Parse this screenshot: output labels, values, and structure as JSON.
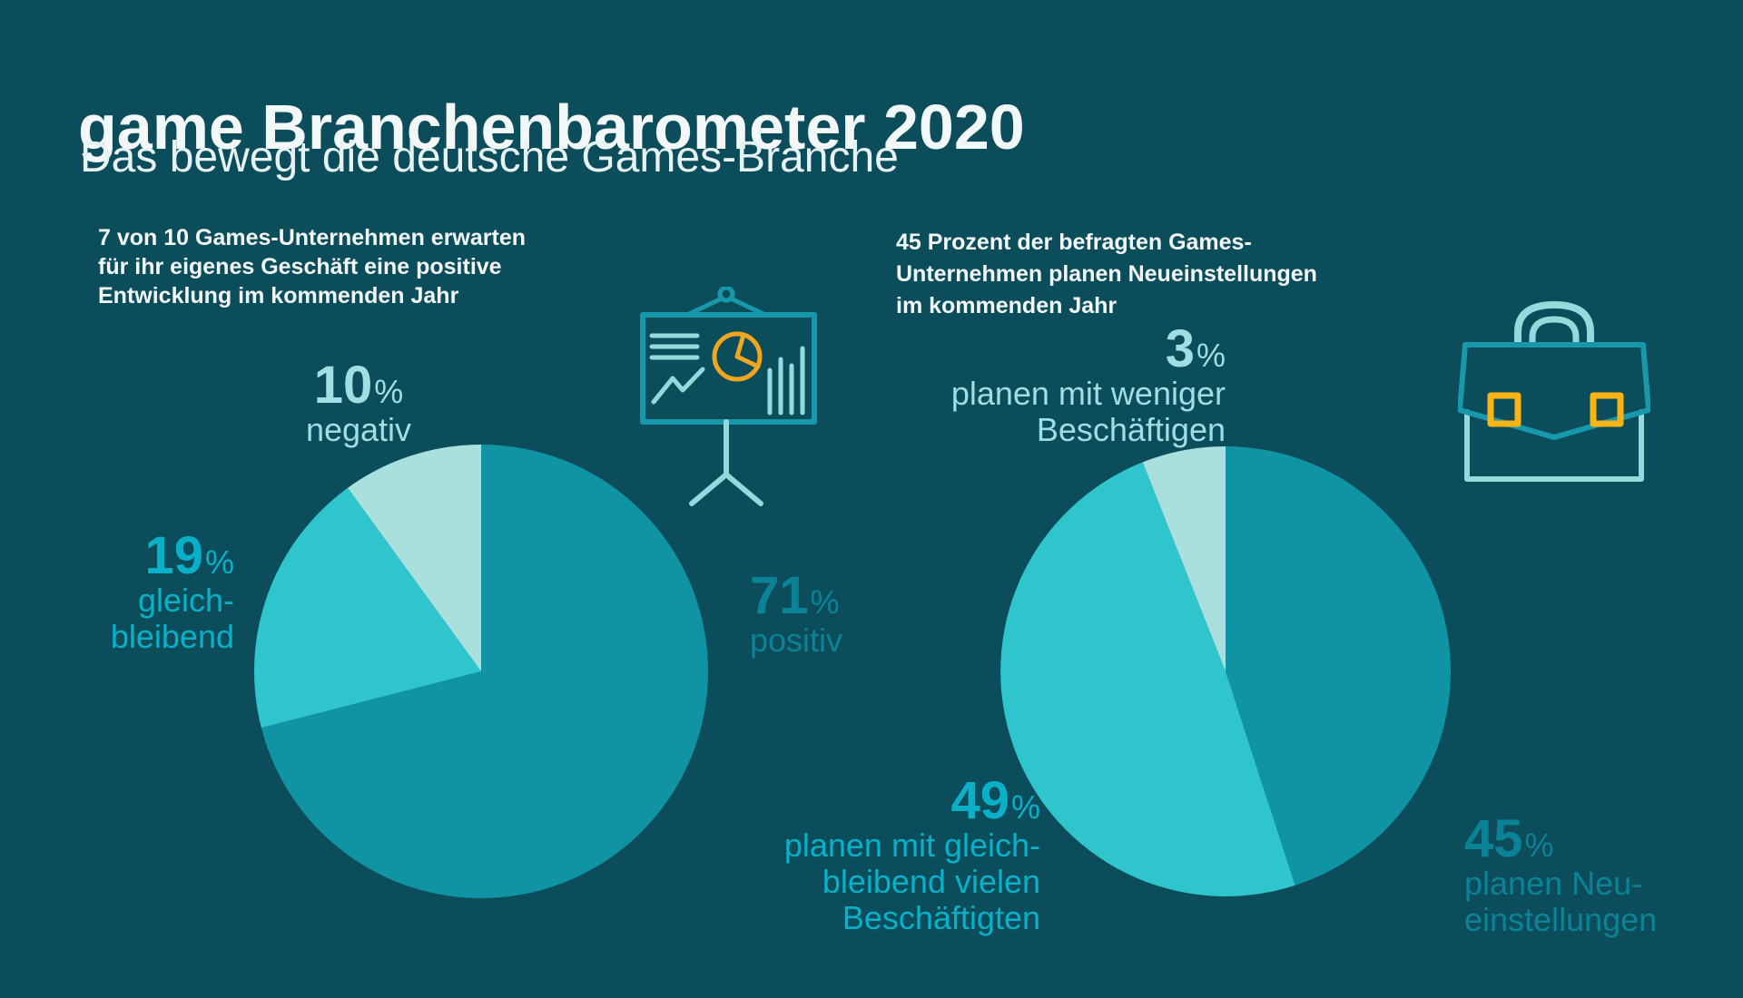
{
  "header": {
    "title": "game Branchenbarometer 2020",
    "subtitle": "Das bewegt die deutsche Games-Branche"
  },
  "left_chart": {
    "intro_lines": [
      "7 von 10 Games-Unternehmen erwarten",
      "für ihr eigenes Geschäft eine positive",
      "Entwicklung im kommenden Jahr"
    ],
    "labels": {
      "negativ": {
        "value": "10",
        "unit": "%",
        "lines": [
          "negativ"
        ]
      },
      "gleichbleibend": {
        "value": "19",
        "unit": "%",
        "lines": [
          "gleich-",
          "bleibend"
        ]
      },
      "positiv": {
        "value": "71",
        "unit": "%",
        "lines": [
          "positiv"
        ]
      }
    }
  },
  "right_chart": {
    "intro_lines": [
      "45 Prozent der befragten Games-",
      "Unternehmen planen Neueinstellungen",
      "im kommenden Jahr"
    ],
    "labels": {
      "weniger": {
        "value": "3",
        "unit": "%",
        "lines": [
          "planen mit weniger",
          "Beschäftigen"
        ]
      },
      "gleichbleibend": {
        "value": "49",
        "unit": "%",
        "lines": [
          "planen mit gleich-",
          "bleibend vielen",
          "Beschäftigten"
        ]
      },
      "neueinstellungen": {
        "value": "45",
        "unit": "%",
        "lines": [
          "planen Neu-",
          "einstellungen"
        ]
      }
    }
  },
  "chart_data": [
    {
      "type": "pie",
      "description": "7 von 10 Games-Unternehmen erwarten für ihr eigenes Geschäft eine positive Entwicklung im kommenden Jahr",
      "start": "12-oclock",
      "direction": "clockwise",
      "segments": [
        {
          "label": "positiv",
          "value": 71,
          "color": "#1094A4"
        },
        {
          "label": "gleich-bleibend",
          "value": 19,
          "color": "#2EC5CC"
        },
        {
          "label": "negativ",
          "value": 10,
          "color": "#A9E0DE"
        }
      ]
    },
    {
      "type": "pie",
      "description": "45 Prozent der befragten Games-Unternehmen planen Neueinstellungen im kommenden Jahr",
      "start": "12-oclock",
      "direction": "clockwise",
      "segments": [
        {
          "label": "planen Neu-einstellungen",
          "value": 45,
          "color": "#1094A4"
        },
        {
          "label": "planen mit gleich-bleibend vielen Beschäftigten",
          "value": 49,
          "color": "#2EC5CC"
        },
        {
          "label": "planen mit weniger Beschäftigen",
          "value": 3,
          "color": "#A9E0DE",
          "render_extra_unlabeled": 3
        }
      ]
    }
  ],
  "icons": {
    "presentation_board": "flipchart board with text lines, trend line, pie chart and bar chart on a tripod stand",
    "briefcase": "briefcase with handle and two buckles"
  },
  "colors": {
    "background": "#0C4D5C",
    "title_text": "#F2F8F8",
    "pale_cyan": "#9FDEE2",
    "bright_cyan": "#09B0C8",
    "teal": "#0C8296",
    "slice_teal": "#1094A4",
    "slice_cyan": "#2EC5CC",
    "slice_pale": "#A9E0DE",
    "icon_stroke_teal": "#1899AB",
    "icon_stroke_light": "#93DADD",
    "icon_yellow_pie": "#F2A51E",
    "icon_yellow_buckles": "#FBB414"
  }
}
